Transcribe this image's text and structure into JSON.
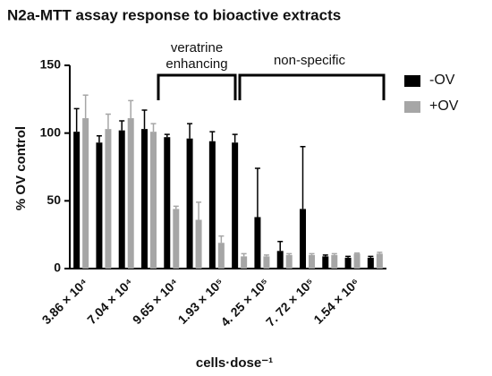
{
  "chart_data": {
    "type": "bar",
    "title": "N2a-MTT assay response to bioactive extracts",
    "xlabel": "cells·dose⁻¹",
    "ylabel": "% OV control",
    "categories": [
      "3.86 × 10⁴",
      null,
      "7.04 × 10⁴",
      null,
      "9.65 × 10⁴",
      null,
      "1.93 × 10⁵",
      null,
      "4. 25 × 10⁵",
      null,
      "7. 72 × 10⁵",
      null,
      "1.54 × 10⁶",
      null
    ],
    "series": [
      {
        "name": "-OV",
        "color": "#000000",
        "values": [
          101,
          93,
          102,
          103,
          97,
          96,
          94,
          93,
          38,
          13,
          44,
          9,
          8,
          8
        ],
        "errors": [
          17,
          5,
          7,
          14,
          2,
          11,
          7,
          6,
          36,
          7,
          46,
          1,
          1,
          1
        ]
      },
      {
        "name": "+OV",
        "color": "#a6a6a6",
        "values": [
          111,
          103,
          111,
          101,
          44,
          36,
          19,
          9,
          9,
          10,
          10,
          10,
          11,
          11
        ],
        "errors": [
          17,
          11,
          13,
          6,
          2,
          13,
          5,
          2,
          1,
          1,
          1,
          1,
          0.5,
          1
        ]
      }
    ],
    "annotations": [
      "veratrine",
      "enhancing",
      "non-specific"
    ],
    "ylim": [
      0,
      150
    ],
    "yticks": [
      0,
      50,
      100,
      150
    ],
    "legend": "right"
  }
}
